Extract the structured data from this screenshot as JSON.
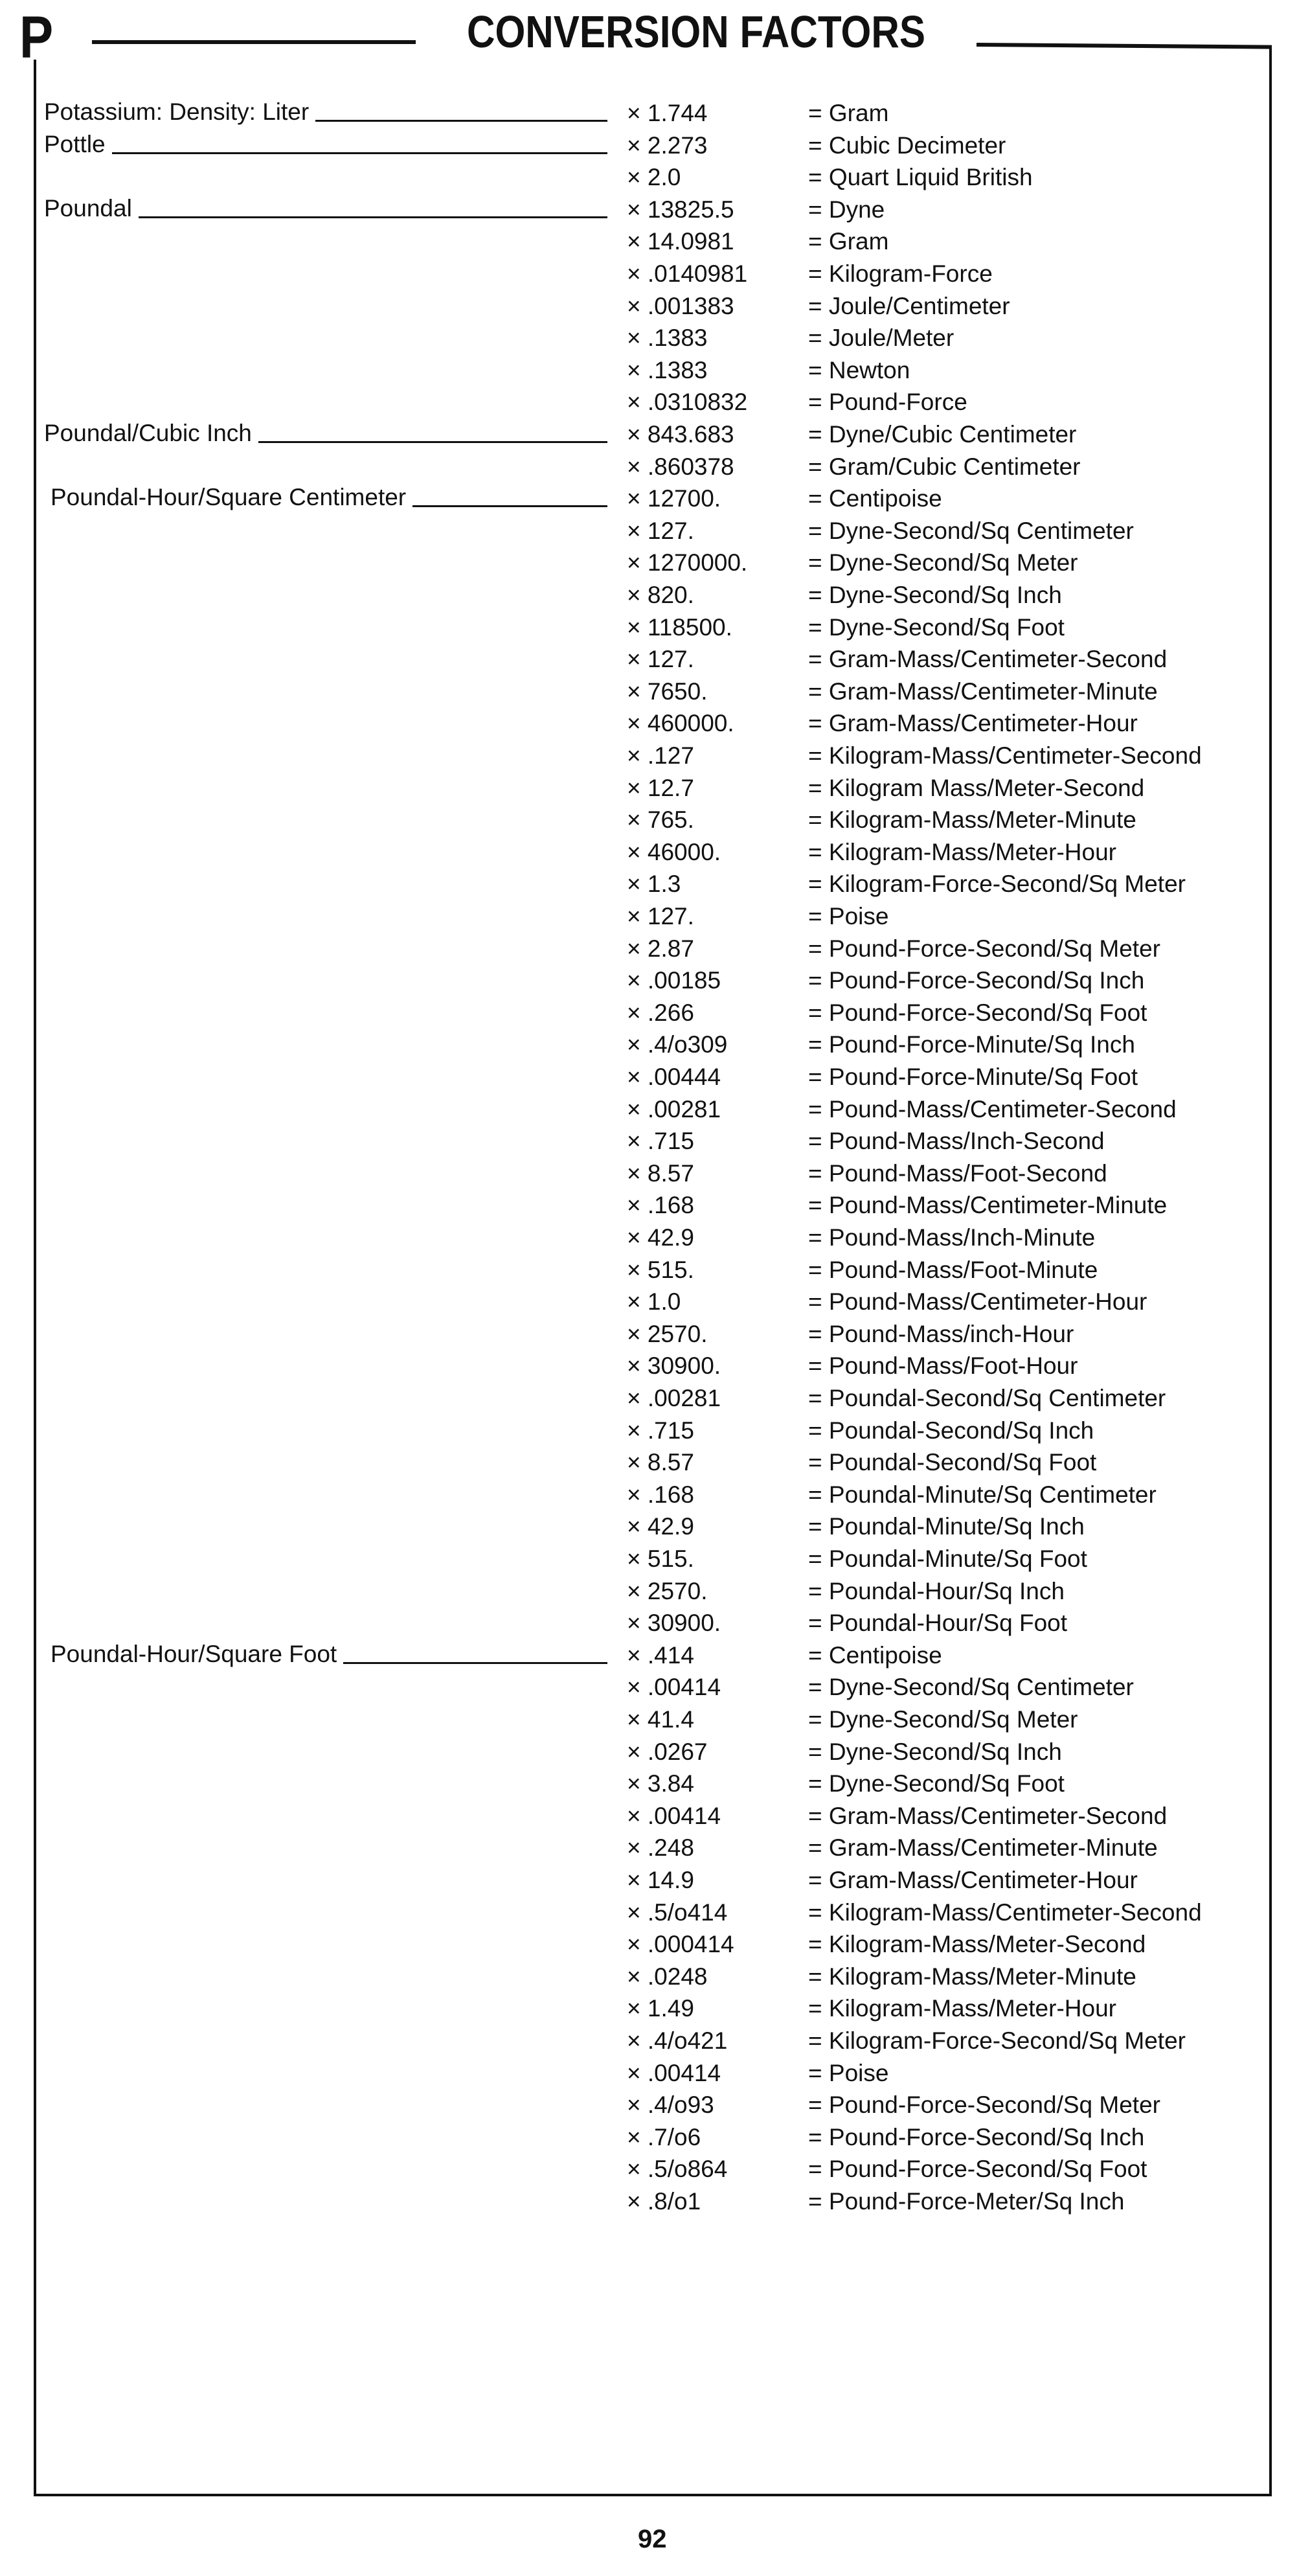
{
  "header": {
    "letter": "P",
    "title": "CONVERSION FACTORS"
  },
  "page_number": "92",
  "groups": [
    {
      "label": "Potassium: Density: Liter",
      "rows": [
        [
          "× 1.744",
          "= Gram"
        ]
      ]
    },
    {
      "label": "Pottle",
      "rows": [
        [
          "× 2.273",
          "= Cubic Decimeter"
        ],
        [
          "× 2.0",
          "= Quart Liquid British"
        ]
      ]
    },
    {
      "label": "Poundal",
      "rows": [
        [
          "× 13825.5",
          "= Dyne"
        ],
        [
          "× 14.0981",
          "= Gram"
        ],
        [
          "× .0140981",
          "= Kilogram-Force"
        ],
        [
          "× .001383",
          "= Joule/Centimeter"
        ],
        [
          "× .1383",
          "= Joule/Meter"
        ],
        [
          "× .1383",
          "= Newton"
        ],
        [
          "× .0310832",
          "= Pound-Force"
        ]
      ]
    },
    {
      "label": "Poundal/Cubic Inch",
      "rows": [
        [
          "× 843.683",
          "= Dyne/Cubic Centimeter"
        ],
        [
          "× .860378",
          "= Gram/Cubic Centimeter"
        ]
      ]
    },
    {
      "label": "Poundal-Hour/Square Centimeter",
      "rows": [
        [
          "× 12700.",
          "= Centipoise"
        ],
        [
          "× 127.",
          "= Dyne-Second/Sq Centimeter"
        ],
        [
          "× 1270000.",
          "= Dyne-Second/Sq Meter"
        ],
        [
          "× 820.",
          "= Dyne-Second/Sq Inch"
        ],
        [
          "× 118500.",
          "= Dyne-Second/Sq Foot"
        ],
        [
          "× 127.",
          "= Gram-Mass/Centimeter-Second"
        ],
        [
          "× 7650.",
          "= Gram-Mass/Centimeter-Minute"
        ],
        [
          "× 460000.",
          "= Gram-Mass/Centimeter-Hour"
        ],
        [
          "× .127",
          "= Kilogram-Mass/Centimeter-Second"
        ],
        [
          "× 12.7",
          "= Kilogram Mass/Meter-Second"
        ],
        [
          "× 765.",
          "= Kilogram-Mass/Meter-Minute"
        ],
        [
          "× 46000.",
          "= Kilogram-Mass/Meter-Hour"
        ],
        [
          "× 1.3",
          "= Kilogram-Force-Second/Sq Meter"
        ],
        [
          "× 127.",
          "= Poise"
        ],
        [
          "× 2.87",
          "= Pound-Force-Second/Sq Meter"
        ],
        [
          "× .00185",
          "= Pound-Force-Second/Sq Inch"
        ],
        [
          "× .266",
          "= Pound-Force-Second/Sq Foot"
        ],
        [
          "× .4/o309",
          "= Pound-Force-Minute/Sq Inch"
        ],
        [
          "× .00444",
          "= Pound-Force-Minute/Sq Foot"
        ],
        [
          "× .00281",
          "= Pound-Mass/Centimeter-Second"
        ],
        [
          "× .715",
          "= Pound-Mass/Inch-Second"
        ],
        [
          "× 8.57",
          "= Pound-Mass/Foot-Second"
        ],
        [
          "× .168",
          "= Pound-Mass/Centimeter-Minute"
        ],
        [
          "× 42.9",
          "= Pound-Mass/Inch-Minute"
        ],
        [
          "× 515.",
          "= Pound-Mass/Foot-Minute"
        ],
        [
          "× 1.0",
          "= Pound-Mass/Centimeter-Hour"
        ],
        [
          "× 2570.",
          "= Pound-Mass/inch-Hour"
        ],
        [
          "× 30900.",
          "= Pound-Mass/Foot-Hour"
        ],
        [
          "× .00281",
          "= Poundal-Second/Sq Centimeter"
        ],
        [
          "× .715",
          "= Poundal-Second/Sq Inch"
        ],
        [
          "× 8.57",
          "= Poundal-Second/Sq Foot"
        ],
        [
          "× .168",
          "= Poundal-Minute/Sq Centimeter"
        ],
        [
          "× 42.9",
          "= Poundal-Minute/Sq Inch"
        ],
        [
          "× 515.",
          "= Poundal-Minute/Sq Foot"
        ],
        [
          "× 2570.",
          "= Poundal-Hour/Sq Inch"
        ],
        [
          "× 30900.",
          "= Poundal-Hour/Sq Foot"
        ]
      ]
    },
    {
      "label": "Poundal-Hour/Square Foot",
      "rows": [
        [
          "× .414",
          "= Centipoise"
        ],
        [
          "× .00414",
          "= Dyne-Second/Sq Centimeter"
        ],
        [
          "× 41.4",
          "= Dyne-Second/Sq Meter"
        ],
        [
          "× .0267",
          "= Dyne-Second/Sq Inch"
        ],
        [
          "× 3.84",
          "= Dyne-Second/Sq Foot"
        ],
        [
          "× .00414",
          "= Gram-Mass/Centimeter-Second"
        ],
        [
          "× .248",
          "= Gram-Mass/Centimeter-Minute"
        ],
        [
          "× 14.9",
          "= Gram-Mass/Centimeter-Hour"
        ],
        [
          "× .5/o414",
          "= Kilogram-Mass/Centimeter-Second"
        ],
        [
          "× .000414",
          "= Kilogram-Mass/Meter-Second"
        ],
        [
          "× .0248",
          "= Kilogram-Mass/Meter-Minute"
        ],
        [
          "× 1.49",
          "= Kilogram-Mass/Meter-Hour"
        ],
        [
          "× .4/o421",
          "= Kilogram-Force-Second/Sq Meter"
        ],
        [
          "× .00414",
          "= Poise"
        ],
        [
          "× .4/o93",
          "= Pound-Force-Second/Sq Meter"
        ],
        [
          "× .7/o6",
          "= Pound-Force-Second/Sq Inch"
        ],
        [
          "× .5/o864",
          "= Pound-Force-Second/Sq Foot"
        ],
        [
          "× .8/o1",
          "= Pound-Force-Meter/Sq Inch"
        ]
      ]
    }
  ]
}
